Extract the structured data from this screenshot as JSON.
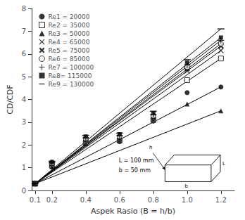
{
  "chart_data": {
    "type": "scatter",
    "xlabel": "Aspek Rasio (B = h/b)",
    "ylabel": "CD/CDF",
    "x": [
      0.1,
      0.2,
      0.4,
      0.6,
      0.8,
      1.0,
      1.2
    ],
    "xlim": [
      0.08,
      1.28
    ],
    "ylim": [
      0.0,
      8.0
    ],
    "xticks": [
      0.1,
      0.2,
      0.4,
      0.6,
      0.8,
      {
        "value": 1.0,
        "label": "1.0"
      },
      1.2
    ],
    "yticks": [
      0,
      1,
      2,
      3,
      4,
      5,
      6,
      7,
      8
    ],
    "grid": false,
    "legend": "upper left",
    "annotations": [
      "L = 100 mm",
      "b = 50 mm"
    ],
    "inset_labels": [
      "L",
      "b",
      "h"
    ],
    "trend_x": [
      0.1,
      1.2
    ],
    "series": [
      {
        "name": "Re1 = 20000",
        "color": "#000000",
        "marker": "circle",
        "values": [
          0.3,
          1.05,
          2.05,
          2.15,
          3.05,
          4.3,
          4.55
        ],
        "trend": [
          0.3,
          4.55
        ]
      },
      {
        "name": "Re2 = 35000",
        "color": "#000000",
        "marker": "open_square",
        "values": [
          0.3,
          1.1,
          2.1,
          2.2,
          3.1,
          4.85,
          5.8
        ],
        "trend": [
          0.3,
          5.8
        ]
      },
      {
        "name": "Re3 = 50000",
        "color": "#000000",
        "marker": "triangle",
        "values": [
          0.3,
          1.05,
          2.1,
          2.2,
          3.12,
          3.8,
          3.5
        ],
        "trend": [
          0.3,
          3.5
        ]
      },
      {
        "name": "Re4 = 65000",
        "color": "#000000",
        "marker": "x",
        "values": [
          0.3,
          1.15,
          2.2,
          2.28,
          3.2,
          5.25,
          6.15
        ],
        "trend": [
          0.3,
          6.15
        ]
      },
      {
        "name": "Re5 = 75000",
        "color": "#000000",
        "marker": "filled_x",
        "values": [
          0.3,
          1.18,
          2.25,
          2.33,
          3.25,
          5.35,
          6.35
        ],
        "trend": [
          0.3,
          6.35
        ]
      },
      {
        "name": "Re6 = 85000",
        "color": "#000000",
        "marker": "open_circle",
        "values": [
          0.3,
          1.2,
          2.28,
          2.38,
          3.28,
          5.42,
          6.45
        ],
        "trend": [
          0.3,
          6.45
        ]
      },
      {
        "name": "Re7 = 100000",
        "color": "#000000",
        "marker": "plus",
        "values": [
          0.3,
          1.22,
          2.32,
          2.42,
          3.35,
          5.52,
          6.6
        ],
        "trend": [
          0.3,
          6.6
        ]
      },
      {
        "name": "Re8= 115000",
        "color": "#000000",
        "marker": "square",
        "values": [
          0.3,
          1.25,
          2.37,
          2.47,
          3.4,
          5.62,
          6.72
        ],
        "trend": [
          0.3,
          6.72
        ]
      },
      {
        "name": "Re9 = 130000",
        "color": "#000000",
        "marker": "hline",
        "values": [
          0.3,
          1.28,
          2.42,
          2.52,
          3.48,
          5.75,
          7.1
        ],
        "trend": [
          0.3,
          7.1
        ]
      }
    ]
  }
}
